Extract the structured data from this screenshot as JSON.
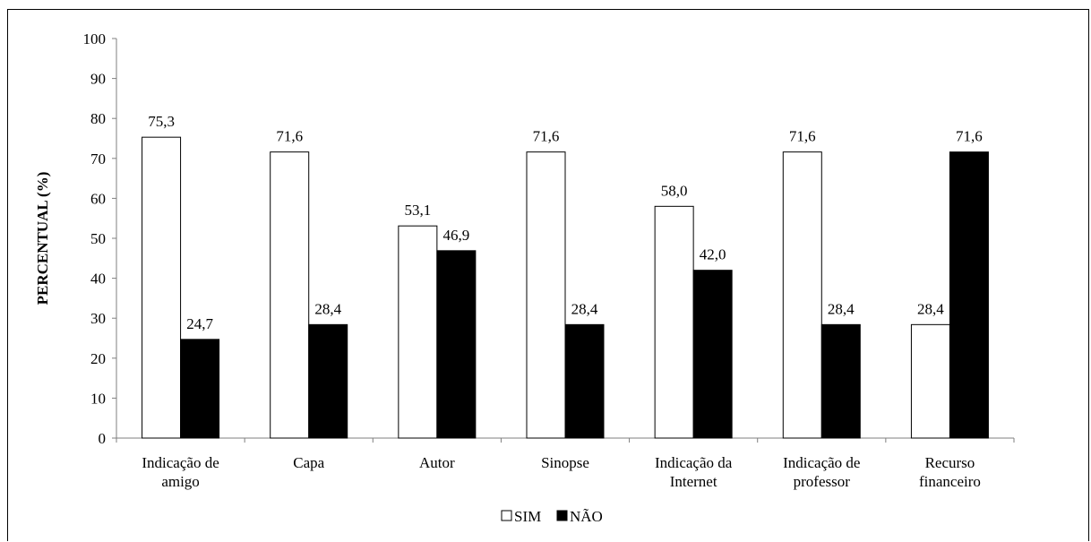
{
  "chart_data": {
    "type": "bar",
    "title": "",
    "xlabel": "",
    "ylabel": "PERCENTUAL (%)",
    "ylim": [
      0,
      100
    ],
    "yticks": [
      "0",
      "10",
      "20",
      "30",
      "40",
      "50",
      "60",
      "70",
      "80",
      "90",
      "100"
    ],
    "categories": [
      [
        "Indicação de",
        "amigo"
      ],
      [
        "Capa"
      ],
      [
        "Autor"
      ],
      [
        "Sinopse"
      ],
      [
        "Indicação da",
        "Internet"
      ],
      [
        "Indicação de",
        "professor"
      ],
      [
        "Recurso",
        "financeiro"
      ]
    ],
    "series": [
      {
        "name": "SIM",
        "color": "#ffffff",
        "values": [
          75.3,
          71.6,
          53.1,
          71.6,
          58.0,
          71.6,
          28.4
        ],
        "labels": [
          "75,3",
          "71,6",
          "53,1",
          "71,6",
          "58,0",
          "71,6",
          "28,4"
        ]
      },
      {
        "name": "NÃO",
        "color": "#000000",
        "values": [
          24.7,
          28.4,
          46.9,
          28.4,
          42.0,
          28.4,
          71.6
        ],
        "labels": [
          "24,7",
          "28,4",
          "46,9",
          "28,4",
          "42,0",
          "28,4",
          "71,6"
        ]
      }
    ],
    "grid": false,
    "legend_position": "bottom"
  }
}
